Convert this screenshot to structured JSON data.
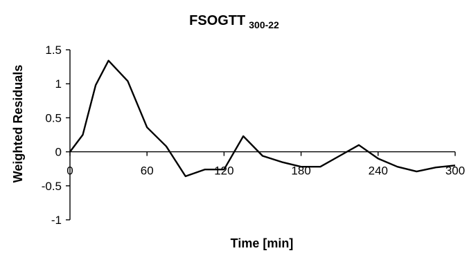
{
  "chart_data": {
    "type": "line",
    "title": "FSOGTT",
    "title_subscript": "300-22",
    "xlabel": "Time [min]",
    "ylabel": "Weighted Residuals",
    "xlim": [
      0,
      300
    ],
    "ylim": [
      -1,
      1.5
    ],
    "x_ticks": [
      "0",
      "60",
      "120",
      "180",
      "240",
      "300"
    ],
    "y_ticks": [
      "1.5",
      "1",
      "0.5",
      "0",
      "-0.5",
      "-1"
    ],
    "grid": false,
    "series": [
      {
        "x": [
          0,
          10,
          20,
          30,
          45,
          60,
          75,
          90,
          105,
          120,
          135,
          150,
          165,
          180,
          195,
          210,
          225,
          240,
          255,
          270,
          285,
          300
        ],
        "y": [
          0,
          0.25,
          0.98,
          1.34,
          1.04,
          0.36,
          0.08,
          -0.36,
          -0.26,
          -0.26,
          0.23,
          -0.06,
          -0.15,
          -0.22,
          -0.22,
          -0.06,
          0.1,
          -0.1,
          -0.22,
          -0.29,
          -0.23,
          -0.2
        ]
      }
    ]
  }
}
